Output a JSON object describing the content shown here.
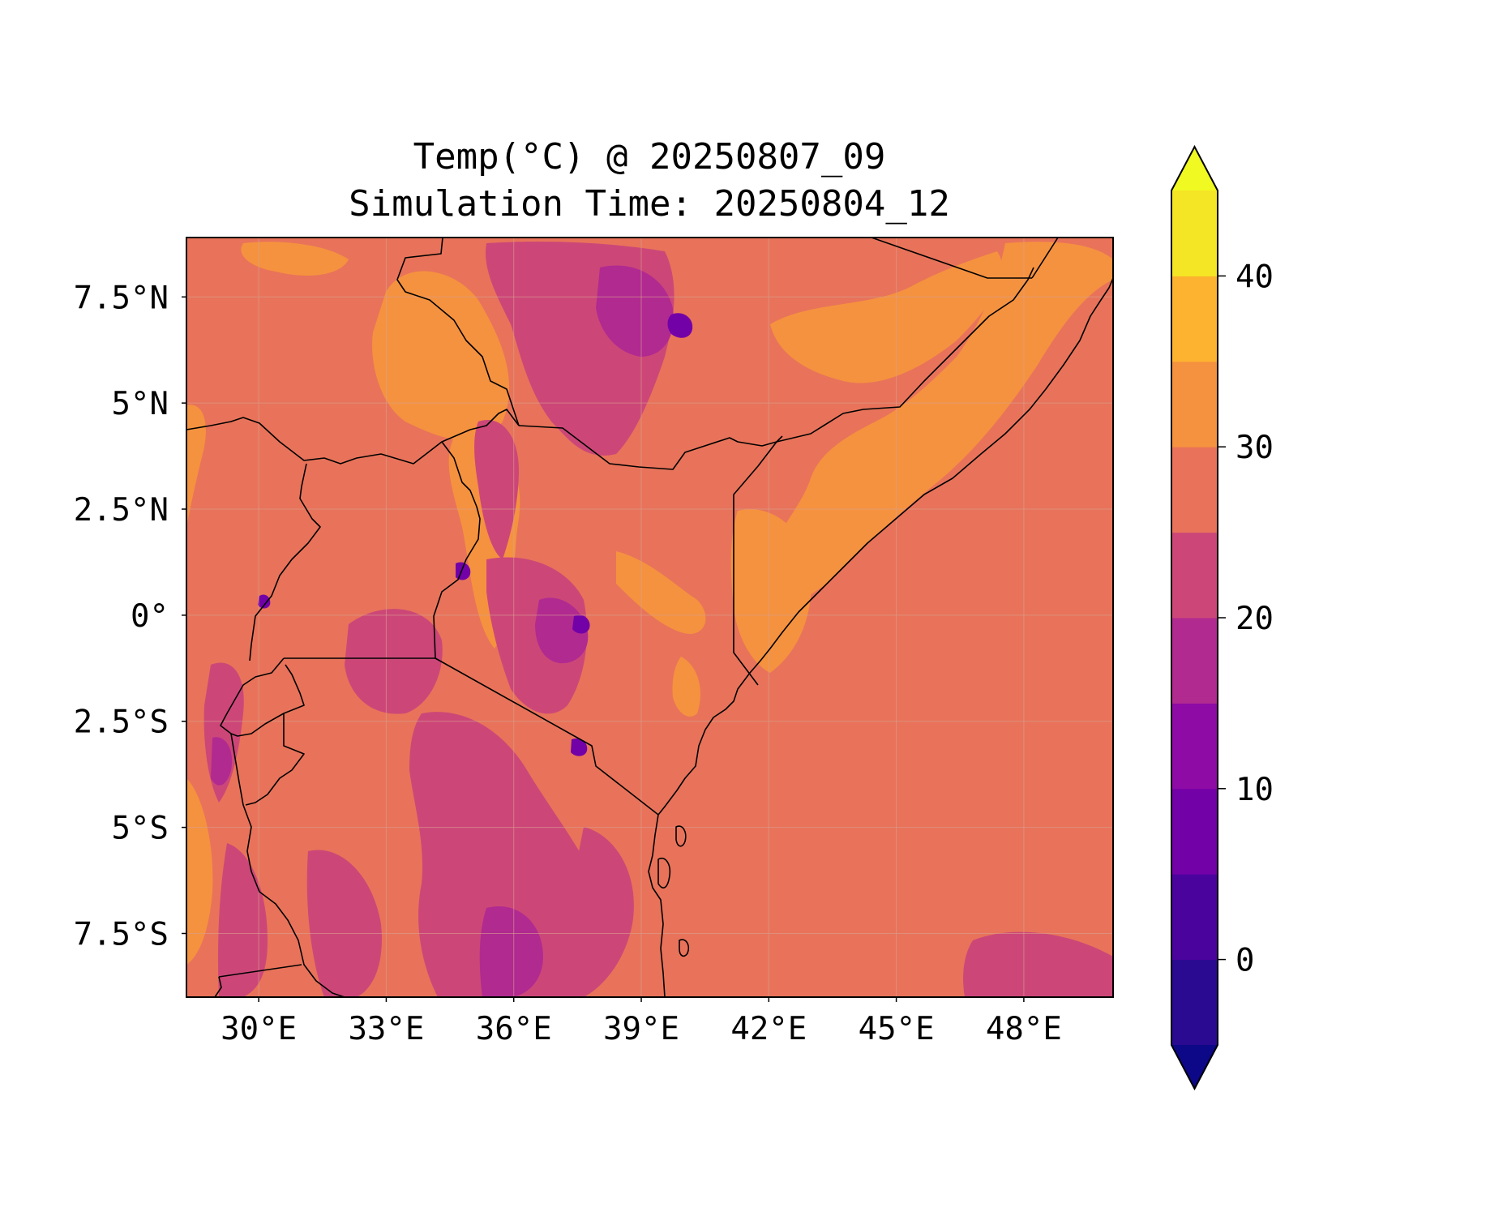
{
  "title": {
    "line1": "Temp(°C) @ 20250807_09",
    "line2": "Simulation Time: 20250804_12"
  },
  "map": {
    "lon_range": [
      28.3,
      50.1
    ],
    "lat_range": [
      -9.0,
      8.9
    ],
    "xticks": [
      {
        "value": 30,
        "label": "30°E"
      },
      {
        "value": 33,
        "label": "33°E"
      },
      {
        "value": 36,
        "label": "36°E"
      },
      {
        "value": 39,
        "label": "39°E"
      },
      {
        "value": 42,
        "label": "42°E"
      },
      {
        "value": 45,
        "label": "45°E"
      },
      {
        "value": 48,
        "label": "48°E"
      }
    ],
    "yticks": [
      {
        "value": 7.5,
        "label": "7.5°N"
      },
      {
        "value": 5,
        "label": "5°N"
      },
      {
        "value": 2.5,
        "label": "2.5°N"
      },
      {
        "value": 0,
        "label": "0°"
      },
      {
        "value": -2.5,
        "label": "2.5°S"
      },
      {
        "value": -5,
        "label": "5°S"
      },
      {
        "value": -7.5,
        "label": "7.5°S"
      }
    ],
    "gridlines": true,
    "background_color": "#e8735a"
  },
  "colorbar": {
    "levels": [
      -5,
      0,
      5,
      10,
      15,
      20,
      25,
      30,
      35,
      40,
      45
    ],
    "colors": [
      "#2a0a91",
      "#4b039e",
      "#7201a8",
      "#8e0ba5",
      "#b12a90",
      "#cc4778",
      "#e8735a",
      "#f5923f",
      "#fdb32f",
      "#f4e525"
    ],
    "under_color": "#0d0887",
    "over_color": "#f0f921",
    "tick_labels": [
      {
        "value": 0,
        "label": "0"
      },
      {
        "value": 10,
        "label": "10"
      },
      {
        "value": 20,
        "label": "20"
      },
      {
        "value": 30,
        "label": "30"
      },
      {
        "value": 40,
        "label": "40"
      }
    ],
    "extend": "both"
  }
}
